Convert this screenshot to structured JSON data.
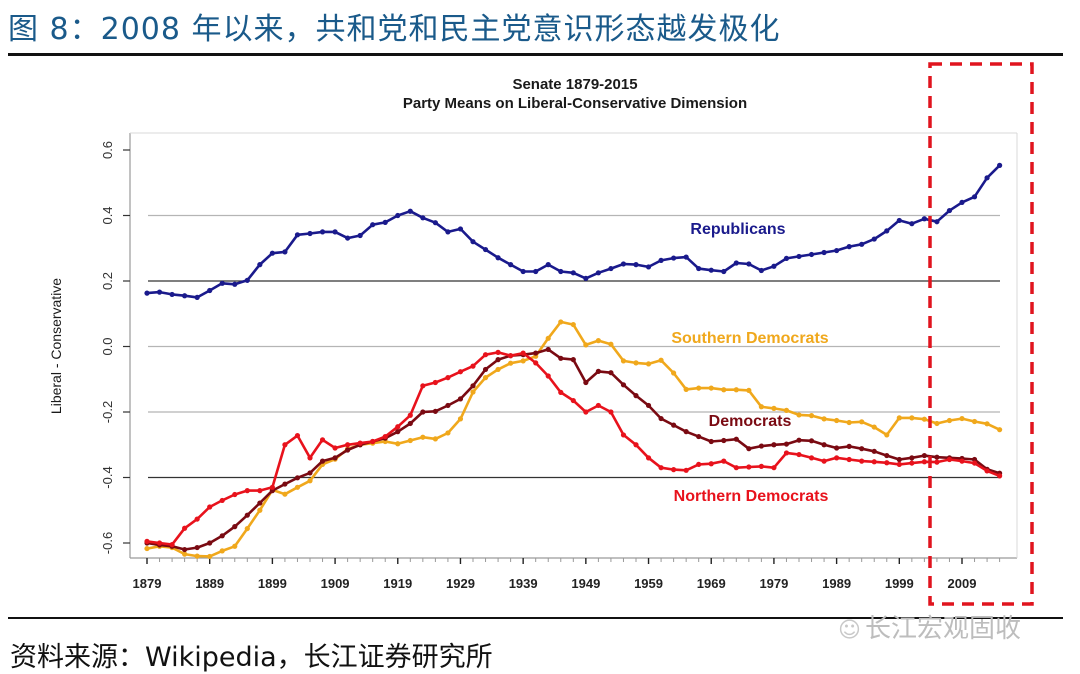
{
  "figure": {
    "title": "图 8：2008 年以来，共和党和民主党意识形态越发极化",
    "source": "资料来源：Wikipedia，长江证券研究所",
    "watermark": "长江宏观固收",
    "watermark_icon": "wechat-icon"
  },
  "colors": {
    "title": "#1a5a8a",
    "republicans": "#1a1a8c",
    "southern_democrats": "#f0a81c",
    "democrats": "#7a0a12",
    "northern_democrats": "#e8121c",
    "highlight_box": "#e0141e"
  },
  "chart_data": {
    "type": "line",
    "title": "Senate 1879-2015",
    "subtitle": "Party Means on Liberal-Conservative Dimension",
    "xlabel": "",
    "ylabel": "Liberal - Conservative",
    "xlim": [
      1877,
      2017
    ],
    "ylim": [
      -0.62,
      0.62
    ],
    "yticks": [
      "0.6",
      "0.4",
      "0.2",
      "0.0",
      "-0.2",
      "-0.4",
      "-0.6"
    ],
    "ytick_values": [
      0.6,
      0.4,
      0.2,
      0.0,
      -0.2,
      -0.4,
      -0.6
    ],
    "xticks": [
      "1879",
      "1889",
      "1899",
      "1909",
      "1919",
      "1929",
      "1939",
      "1949",
      "1959",
      "1969",
      "1979",
      "1989",
      "1999",
      "2009"
    ],
    "xtick_values": [
      1879,
      1889,
      1899,
      1909,
      1919,
      1929,
      1939,
      1949,
      1959,
      1969,
      1979,
      1989,
      1999,
      2009
    ],
    "grid": "horizontal",
    "highlight": {
      "label": "2008 onward",
      "from": 2002,
      "to": 2017
    },
    "x": [
      1879,
      1881,
      1883,
      1885,
      1887,
      1889,
      1891,
      1893,
      1895,
      1897,
      1899,
      1901,
      1903,
      1905,
      1907,
      1909,
      1911,
      1913,
      1915,
      1917,
      1919,
      1921,
      1923,
      1925,
      1927,
      1929,
      1931,
      1933,
      1935,
      1937,
      1939,
      1941,
      1943,
      1945,
      1947,
      1949,
      1951,
      1953,
      1955,
      1957,
      1959,
      1961,
      1963,
      1965,
      1967,
      1969,
      1971,
      1973,
      1975,
      1977,
      1979,
      1981,
      1983,
      1985,
      1987,
      1989,
      1991,
      1993,
      1995,
      1997,
      1999,
      2001,
      2003,
      2005,
      2007,
      2009,
      2011,
      2013,
      2015
    ],
    "series": [
      {
        "name": "Republicans",
        "label": "Republicans",
        "color_key": "republicans",
        "values": [
          0.163,
          0.166,
          0.159,
          0.155,
          0.15,
          0.171,
          0.193,
          0.19,
          0.202,
          0.25,
          0.285,
          0.289,
          0.341,
          0.345,
          0.35,
          0.35,
          0.331,
          0.339,
          0.372,
          0.379,
          0.4,
          0.413,
          0.393,
          0.378,
          0.35,
          0.359,
          0.32,
          0.296,
          0.271,
          0.25,
          0.229,
          0.229,
          0.25,
          0.229,
          0.225,
          0.208,
          0.225,
          0.238,
          0.252,
          0.25,
          0.243,
          0.263,
          0.27,
          0.273,
          0.238,
          0.233,
          0.229,
          0.255,
          0.252,
          0.232,
          0.245,
          0.269,
          0.275,
          0.281,
          0.287,
          0.293,
          0.305,
          0.312,
          0.328,
          0.353,
          0.385,
          0.375,
          0.39,
          0.381,
          0.415,
          0.44,
          0.457,
          0.515,
          0.553
        ]
      },
      {
        "name": "Southern Democrats",
        "label": "Southern Democrats",
        "color_key": "southern_democrats",
        "values": [
          -0.617,
          -0.61,
          -0.614,
          -0.634,
          -0.64,
          -0.641,
          -0.624,
          -0.61,
          -0.556,
          -0.5,
          -0.438,
          -0.451,
          -0.43,
          -0.41,
          -0.36,
          -0.344,
          -0.313,
          -0.3,
          -0.295,
          -0.29,
          -0.297,
          -0.287,
          -0.277,
          -0.282,
          -0.264,
          -0.221,
          -0.139,
          -0.095,
          -0.07,
          -0.051,
          -0.044,
          -0.03,
          0.025,
          0.075,
          0.067,
          0.005,
          0.018,
          0.007,
          -0.044,
          -0.05,
          -0.053,
          -0.042,
          -0.081,
          -0.131,
          -0.127,
          -0.127,
          -0.132,
          -0.132,
          -0.134,
          -0.184,
          -0.189,
          -0.195,
          -0.209,
          -0.211,
          -0.221,
          -0.226,
          -0.232,
          -0.23,
          -0.246,
          -0.27,
          -0.218,
          -0.218,
          -0.222,
          -0.235,
          -0.226,
          -0.22,
          -0.229,
          -0.236,
          -0.254
        ]
      },
      {
        "name": "Democrats",
        "label": "Democrats",
        "color_key": "democrats",
        "values": [
          -0.6,
          -0.606,
          -0.61,
          -0.62,
          -0.614,
          -0.6,
          -0.578,
          -0.55,
          -0.515,
          -0.478,
          -0.44,
          -0.42,
          -0.401,
          -0.386,
          -0.35,
          -0.34,
          -0.316,
          -0.3,
          -0.29,
          -0.28,
          -0.26,
          -0.235,
          -0.2,
          -0.198,
          -0.18,
          -0.16,
          -0.12,
          -0.07,
          -0.04,
          -0.028,
          -0.025,
          -0.02,
          -0.009,
          -0.036,
          -0.04,
          -0.11,
          -0.076,
          -0.08,
          -0.117,
          -0.15,
          -0.18,
          -0.22,
          -0.24,
          -0.26,
          -0.275,
          -0.29,
          -0.287,
          -0.283,
          -0.312,
          -0.304,
          -0.3,
          -0.298,
          -0.286,
          -0.288,
          -0.3,
          -0.31,
          -0.305,
          -0.312,
          -0.32,
          -0.333,
          -0.345,
          -0.34,
          -0.333,
          -0.338,
          -0.34,
          -0.342,
          -0.345,
          -0.375,
          -0.387
        ]
      },
      {
        "name": "Northern Democrats",
        "label": "Northern Democrats",
        "color_key": "northern_democrats",
        "values": [
          -0.595,
          -0.6,
          -0.605,
          -0.555,
          -0.527,
          -0.49,
          -0.47,
          -0.452,
          -0.44,
          -0.44,
          -0.43,
          -0.3,
          -0.272,
          -0.34,
          -0.285,
          -0.31,
          -0.3,
          -0.295,
          -0.29,
          -0.275,
          -0.245,
          -0.21,
          -0.12,
          -0.11,
          -0.095,
          -0.077,
          -0.06,
          -0.025,
          -0.018,
          -0.028,
          -0.02,
          -0.05,
          -0.09,
          -0.14,
          -0.165,
          -0.2,
          -0.18,
          -0.2,
          -0.27,
          -0.3,
          -0.34,
          -0.37,
          -0.376,
          -0.378,
          -0.36,
          -0.358,
          -0.35,
          -0.37,
          -0.368,
          -0.366,
          -0.37,
          -0.325,
          -0.33,
          -0.34,
          -0.35,
          -0.34,
          -0.345,
          -0.35,
          -0.352,
          -0.355,
          -0.36,
          -0.356,
          -0.352,
          -0.353,
          -0.345,
          -0.35,
          -0.356,
          -0.38,
          -0.395
        ]
      }
    ],
    "series_labels": [
      "Republicans",
      "Southern Democrats",
      "Democrats",
      "Northern Democrats"
    ]
  }
}
